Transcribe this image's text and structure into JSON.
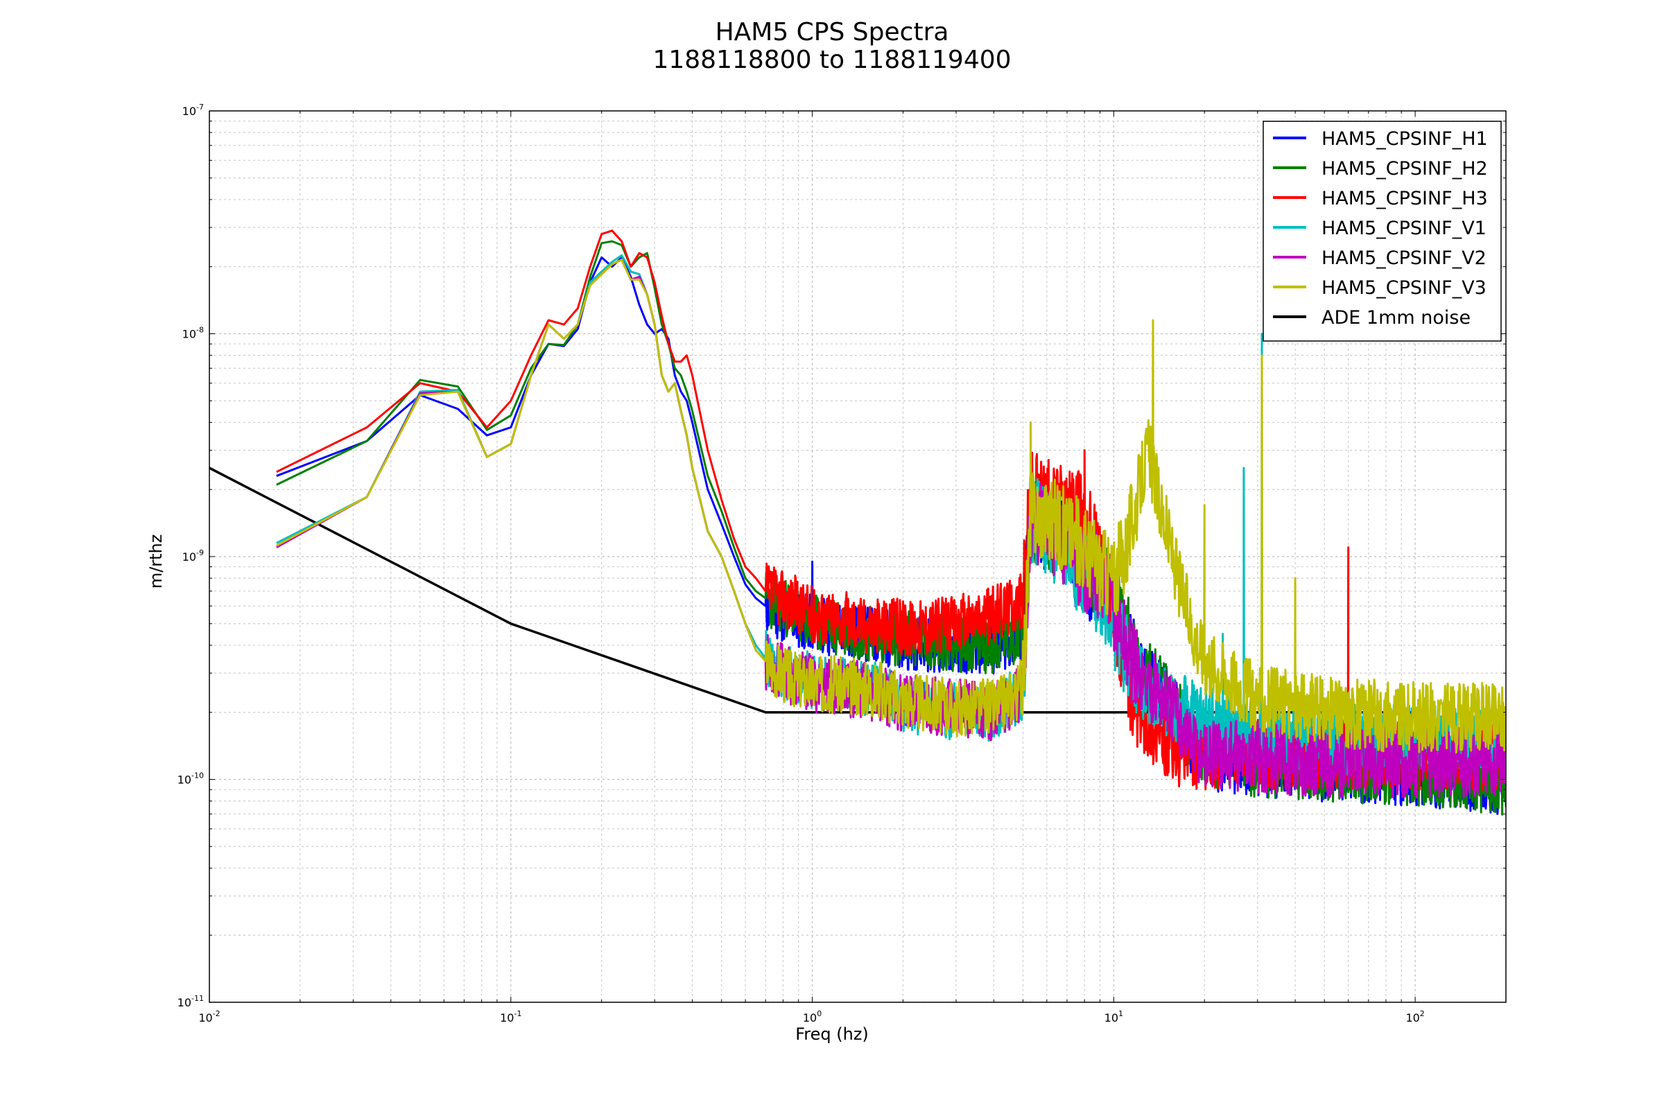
{
  "chart_data": {
    "type": "line",
    "title": "HAM5 CPS Spectra",
    "subtitle": "1188118800 to 1188119400",
    "xlabel": "Freq (hz)",
    "ylabel": "m/rthz",
    "xscale": "log",
    "yscale": "log",
    "xlim": [
      0.01,
      200
    ],
    "ylim": [
      1e-11,
      1e-07
    ],
    "grid": true,
    "legend_placement": "top-right",
    "x_ticks": [
      {
        "value": 0.01,
        "base": "10",
        "exp": "-2"
      },
      {
        "value": 0.1,
        "base": "10",
        "exp": "-1"
      },
      {
        "value": 1,
        "base": "10",
        "exp": "0"
      },
      {
        "value": 10,
        "base": "10",
        "exp": "1"
      },
      {
        "value": 100,
        "base": "10",
        "exp": "2"
      }
    ],
    "y_ticks": [
      {
        "value": 1e-07,
        "base": "10",
        "exp": "-7"
      },
      {
        "value": 1e-08,
        "base": "10",
        "exp": "-8"
      },
      {
        "value": 1e-09,
        "base": "10",
        "exp": "-9"
      },
      {
        "value": 1e-10,
        "base": "10",
        "exp": "-10"
      },
      {
        "value": 1e-11,
        "base": "10",
        "exp": "-11"
      }
    ],
    "series": [
      {
        "name": "HAM5_CPSINF_H1",
        "color": "#0000ff",
        "seed": 11,
        "high_level": 1.2e-10,
        "x": [
          0.0167,
          0.0333,
          0.05,
          0.0667,
          0.0833,
          0.1,
          0.1167,
          0.1333,
          0.15,
          0.1667,
          0.1833,
          0.2,
          0.2167,
          0.2333,
          0.25,
          0.2667,
          0.2833,
          0.3,
          0.3167,
          0.3333,
          0.35,
          0.3667,
          0.3833,
          0.4,
          0.45,
          0.5,
          0.55,
          0.6,
          0.65,
          0.7,
          0.8,
          0.9,
          1.0,
          1.5,
          2.0,
          3.0,
          4.0,
          5.0,
          5.3,
          6.0,
          7.0,
          8.0,
          9.0,
          10.0,
          11.0,
          12.0,
          14.0,
          16.0,
          18.0,
          20.0,
          30.0,
          50.0,
          100.0,
          200.0
        ],
        "y": [
          2.3e-09,
          3.3e-09,
          5.3e-09,
          4.6e-09,
          3.5e-09,
          3.8e-09,
          6.5e-09,
          9e-09,
          8.8e-09,
          1.05e-08,
          1.7e-08,
          2.2e-08,
          2e-08,
          2.2e-08,
          1.8e-08,
          1.35e-08,
          1.1e-08,
          1e-08,
          1.05e-08,
          9.5e-09,
          6.5e-09,
          5.5e-09,
          5e-09,
          4e-09,
          2e-09,
          1.4e-09,
          1e-09,
          7.5e-10,
          6.5e-10,
          6e-10,
          5.5e-10,
          5.2e-10,
          5e-10,
          4.5e-10,
          4.2e-10,
          4e-10,
          4e-10,
          4.5e-10,
          1.5e-09,
          1.3e-09,
          1.1e-09,
          8e-10,
          8e-10,
          6e-10,
          4e-10,
          3e-10,
          2.5e-10,
          2e-10,
          1.5e-10,
          1.3e-10,
          1.2e-10,
          1.15e-10,
          1.1e-10,
          1e-10
        ]
      },
      {
        "name": "HAM5_CPSINF_H2",
        "color": "#008000",
        "seed": 23,
        "high_level": 1.15e-10,
        "x": [
          0.0167,
          0.0333,
          0.05,
          0.0667,
          0.0833,
          0.1,
          0.1167,
          0.1333,
          0.15,
          0.1667,
          0.1833,
          0.2,
          0.2167,
          0.2333,
          0.25,
          0.2667,
          0.2833,
          0.3,
          0.3167,
          0.3333,
          0.35,
          0.3667,
          0.3833,
          0.4,
          0.45,
          0.5,
          0.55,
          0.6,
          0.65,
          0.7,
          0.8,
          0.9,
          1.0,
          1.5,
          2.0,
          3.0,
          4.0,
          5.0,
          5.3,
          6.0,
          7.0,
          8.0,
          9.0,
          10.0,
          11.0,
          12.0,
          14.0,
          16.0,
          18.0,
          20.0,
          30.0,
          50.0,
          100.0,
          200.0
        ],
        "y": [
          2.1e-09,
          3.3e-09,
          6.2e-09,
          5.8e-09,
          3.7e-09,
          4.3e-09,
          7e-09,
          9e-09,
          8.9e-09,
          1.1e-08,
          1.8e-08,
          2.55e-08,
          2.6e-08,
          2.5e-08,
          2e-08,
          2.2e-08,
          2.3e-08,
          1.6e-08,
          1.1e-08,
          9e-09,
          7e-09,
          6.5e-09,
          5.5e-09,
          4.5e-09,
          2.3e-09,
          1.6e-09,
          1.1e-09,
          8e-10,
          7e-10,
          6.5e-10,
          6e-10,
          5.5e-10,
          5e-10,
          4.6e-10,
          4.3e-10,
          4.1e-10,
          4e-10,
          4.6e-10,
          1.5e-09,
          1.3e-09,
          1.2e-09,
          9e-10,
          8e-10,
          6e-10,
          4.5e-10,
          3.2e-10,
          2.6e-10,
          2e-10,
          1.6e-10,
          1.35e-10,
          1.2e-10,
          1.15e-10,
          1.1e-10,
          1e-10
        ]
      },
      {
        "name": "HAM5_CPSINF_H3",
        "color": "#ff0000",
        "seed": 37,
        "high_level": 1.3e-10,
        "x": [
          0.0167,
          0.0333,
          0.05,
          0.0667,
          0.0833,
          0.1,
          0.1167,
          0.1333,
          0.15,
          0.1667,
          0.1833,
          0.2,
          0.2167,
          0.2333,
          0.25,
          0.2667,
          0.2833,
          0.3,
          0.3167,
          0.3333,
          0.35,
          0.3667,
          0.3833,
          0.4,
          0.45,
          0.5,
          0.55,
          0.6,
          0.65,
          0.7,
          0.8,
          0.9,
          1.0,
          1.5,
          2.0,
          3.0,
          4.0,
          5.0,
          5.3,
          6.0,
          7.0,
          8.0,
          9.0,
          10.0,
          11.0,
          12.0,
          14.0,
          16.0,
          18.0,
          20.0,
          30.0,
          50.0,
          100.0,
          200.0
        ],
        "y": [
          2.4e-09,
          3.8e-09,
          6e-09,
          5.5e-09,
          3.8e-09,
          5e-09,
          8e-09,
          1.15e-08,
          1.1e-08,
          1.3e-08,
          2e-08,
          2.8e-08,
          2.9e-08,
          2.6e-08,
          2e-08,
          2.3e-08,
          2.2e-08,
          1.7e-08,
          1.2e-08,
          9e-09,
          7.5e-09,
          7.5e-09,
          8e-09,
          6.5e-09,
          3e-09,
          1.8e-09,
          1.2e-09,
          9e-10,
          8e-10,
          7e-10,
          6.5e-10,
          6e-10,
          5.5e-10,
          5e-10,
          4.8e-10,
          5e-10,
          5.5e-10,
          6.5e-10,
          2e-09,
          1.8e-09,
          1.6e-09,
          1.6e-09,
          1e-09,
          6e-10,
          3e-10,
          2e-10,
          1.6e-10,
          1.3e-10,
          1.3e-10,
          1.3e-10,
          1.3e-10,
          1.3e-10,
          1.3e-10,
          1.3e-10
        ]
      },
      {
        "name": "HAM5_CPSINF_V1",
        "color": "#00bfbf",
        "seed": 41,
        "high_level": 1.5e-10,
        "x": [
          0.0167,
          0.0333,
          0.05,
          0.0667,
          0.0833,
          0.1,
          0.1167,
          0.1333,
          0.15,
          0.1667,
          0.1833,
          0.2,
          0.2167,
          0.2333,
          0.25,
          0.2667,
          0.2833,
          0.3,
          0.3167,
          0.3333,
          0.35,
          0.3667,
          0.3833,
          0.4,
          0.45,
          0.5,
          0.55,
          0.6,
          0.65,
          0.7,
          0.8,
          0.9,
          1.0,
          1.5,
          2.0,
          3.0,
          4.0,
          5.0,
          5.3,
          6.0,
          7.0,
          8.0,
          9.0,
          10.0,
          11.0,
          12.0,
          14.0,
          16.0,
          18.0,
          20.0,
          30.0,
          50.0,
          100.0,
          200.0
        ],
        "y": [
          1.15e-09,
          1.85e-09,
          5.5e-09,
          5.6e-09,
          2.8e-09,
          3.2e-09,
          6.5e-09,
          1.1e-08,
          9.5e-09,
          1.1e-08,
          1.7e-08,
          1.9e-08,
          2.1e-08,
          2.25e-08,
          1.9e-08,
          1.85e-08,
          1.5e-08,
          1.1e-08,
          6.5e-09,
          5.5e-09,
          6e-09,
          4.5e-09,
          3.5e-09,
          2.5e-09,
          1.3e-09,
          1e-09,
          7e-10,
          5e-10,
          4e-10,
          3.5e-10,
          3e-10,
          2.8e-10,
          2.8e-10,
          2.6e-10,
          2.2e-10,
          2e-10,
          2e-10,
          2.5e-10,
          1.5e-09,
          1.3e-09,
          1e-09,
          8e-10,
          7e-10,
          5e-10,
          3.5e-10,
          2.8e-10,
          2.4e-10,
          2.1e-10,
          2e-10,
          1.8e-10,
          1.6e-10,
          1.5e-10,
          1.5e-10,
          1.5e-10
        ]
      },
      {
        "name": "HAM5_CPSINF_V2",
        "color": "#bf00bf",
        "seed": 53,
        "high_level": 1.25e-10,
        "x": [
          0.0167,
          0.0333,
          0.05,
          0.0667,
          0.0833,
          0.1,
          0.1167,
          0.1333,
          0.15,
          0.1667,
          0.1833,
          0.2,
          0.2167,
          0.2333,
          0.25,
          0.2667,
          0.2833,
          0.3,
          0.3167,
          0.3333,
          0.35,
          0.3667,
          0.3833,
          0.4,
          0.45,
          0.5,
          0.55,
          0.6,
          0.65,
          0.7,
          0.8,
          0.9,
          1.0,
          1.5,
          2.0,
          3.0,
          4.0,
          5.0,
          5.3,
          6.0,
          7.0,
          8.0,
          9.0,
          10.0,
          11.0,
          12.0,
          14.0,
          16.0,
          18.0,
          20.0,
          30.0,
          50.0,
          100.0,
          200.0
        ],
        "y": [
          1.1e-09,
          1.85e-09,
          5.4e-09,
          5.5e-09,
          2.8e-09,
          3.2e-09,
          6.5e-09,
          1.1e-08,
          9.5e-09,
          1.1e-08,
          1.65e-08,
          1.85e-08,
          2.05e-08,
          2.15e-08,
          1.75e-08,
          1.8e-08,
          1.5e-08,
          1.1e-08,
          6.5e-09,
          5.5e-09,
          6e-09,
          4.5e-09,
          3.5e-09,
          2.5e-09,
          1.3e-09,
          1e-09,
          7e-10,
          5e-10,
          3.8e-10,
          3.4e-10,
          3e-10,
          2.8e-10,
          2.7e-10,
          2.5e-10,
          2.2e-10,
          2.1e-10,
          2e-10,
          2.5e-10,
          1.5e-09,
          1.4e-09,
          1.1e-09,
          9e-10,
          8e-10,
          6e-10,
          4e-10,
          3e-10,
          2.5e-10,
          2e-10,
          1.5e-10,
          1.3e-10,
          1.25e-10,
          1.2e-10,
          1.2e-10,
          1.2e-10
        ]
      },
      {
        "name": "HAM5_CPSINF_V3",
        "color": "#bfbf00",
        "seed": 67,
        "high_level": 1.9e-10,
        "x": [
          0.0167,
          0.0333,
          0.05,
          0.0667,
          0.0833,
          0.1,
          0.1167,
          0.1333,
          0.15,
          0.1667,
          0.1833,
          0.2,
          0.2167,
          0.2333,
          0.25,
          0.2667,
          0.2833,
          0.3,
          0.3167,
          0.3333,
          0.35,
          0.3667,
          0.3833,
          0.4,
          0.45,
          0.5,
          0.55,
          0.6,
          0.65,
          0.7,
          0.8,
          0.9,
          1.0,
          1.5,
          2.0,
          3.0,
          4.0,
          5.0,
          5.3,
          6.0,
          7.0,
          8.0,
          9.0,
          10.0,
          11.0,
          12.0,
          13.0,
          14.0,
          16.0,
          18.0,
          20.0,
          30.0,
          50.0,
          100.0,
          200.0
        ],
        "y": [
          1.12e-09,
          1.85e-09,
          5.3e-09,
          5.5e-09,
          2.8e-09,
          3.2e-09,
          6.5e-09,
          1.1e-08,
          9.5e-09,
          1.1e-08,
          1.65e-08,
          1.85e-08,
          2.05e-08,
          2.15e-08,
          1.75e-08,
          1.75e-08,
          1.5e-08,
          1.1e-08,
          6.5e-09,
          5.5e-09,
          6e-09,
          4.5e-09,
          3.5e-09,
          2.5e-09,
          1.3e-09,
          1e-09,
          7e-10,
          5e-10,
          3.8e-10,
          3.4e-10,
          3e-10,
          2.8e-10,
          2.7e-10,
          2.6e-10,
          2.3e-10,
          2.1e-10,
          2.1e-10,
          2.6e-10,
          1.6e-09,
          1.5e-09,
          1.3e-09,
          1.1e-09,
          9e-10,
          8e-10,
          1.1e-09,
          1.9e-09,
          3e-09,
          1.9e-09,
          9e-10,
          5e-10,
          3.5e-10,
          2.3e-10,
          2e-10,
          1.9e-10,
          1.9e-10
        ]
      },
      {
        "name": "ADE 1mm noise",
        "color": "#000000",
        "seed": 0,
        "high_level": 0,
        "x": [
          0.01,
          0.1,
          0.7,
          100
        ],
        "y": [
          2.5e-09,
          5e-10,
          2e-10,
          2e-10
        ]
      }
    ],
    "peaks": [
      {
        "series": "HAM5_CPSINF_V3",
        "x": 13.5,
        "y": 1.15e-08
      },
      {
        "series": "HAM5_CPSINF_V3",
        "x": 31.0,
        "y": 8e-09
      },
      {
        "series": "HAM5_CPSINF_V1",
        "x": 31.0,
        "y": 1e-08
      },
      {
        "series": "HAM5_CPSINF_V1",
        "x": 27.0,
        "y": 2.5e-09
      },
      {
        "series": "HAM5_CPSINF_H3",
        "x": 8.0,
        "y": 3e-09
      },
      {
        "series": "HAM5_CPSINF_V3",
        "x": 5.3,
        "y": 4e-09
      },
      {
        "series": "HAM5_CPSINF_V3",
        "x": 20.0,
        "y": 1.7e-09
      },
      {
        "series": "HAM5_CPSINF_H3",
        "x": 60.0,
        "y": 1.1e-09
      },
      {
        "series": "HAM5_CPSINF_H1",
        "x": 1.0,
        "y": 9.5e-10
      },
      {
        "series": "HAM5_CPSINF_V1",
        "x": 23.0,
        "y": 4.5e-10
      },
      {
        "series": "HAM5_CPSINF_V3",
        "x": 40.0,
        "y": 8e-10
      }
    ]
  }
}
